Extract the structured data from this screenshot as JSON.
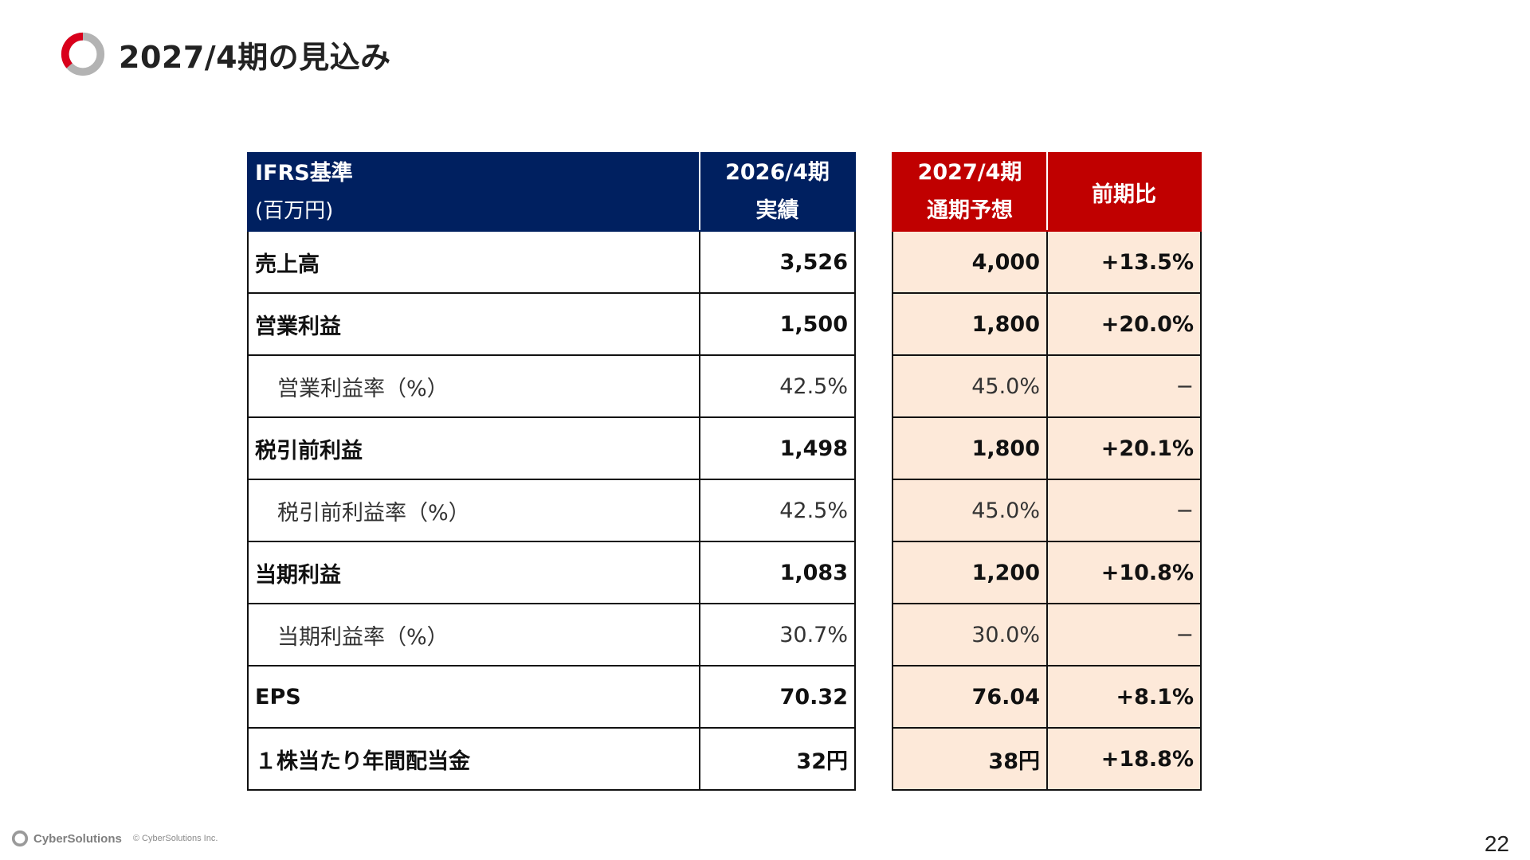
{
  "page": {
    "title": "2027/4期の見込み",
    "page_number": "22"
  },
  "table": {
    "header": {
      "label_line1": "IFRS基準",
      "label_line2": "(百万円)",
      "actual_line1": "2026/4期",
      "actual_line2": "実績",
      "forecast_line1": "2027/4期",
      "forecast_line2": "通期予想",
      "yoy": "前期比"
    },
    "rows": [
      {
        "label": "売上高",
        "actual": "3,526",
        "forecast": "4,000",
        "yoy": "+13.5%"
      },
      {
        "label": "営業利益",
        "actual": "1,500",
        "forecast": "1,800",
        "yoy": "+20.0%"
      },
      {
        "label": "営業利益率（%）",
        "actual": "42.5%",
        "forecast": "45.0%",
        "yoy": "−"
      },
      {
        "label": "税引前利益",
        "actual": "1,498",
        "forecast": "1,800",
        "yoy": "+20.1%"
      },
      {
        "label": "税引前利益率（%）",
        "actual": "42.5%",
        "forecast": "45.0%",
        "yoy": "−"
      },
      {
        "label": "当期利益",
        "actual": "1,083",
        "forecast": "1,200",
        "yoy": "+10.8%"
      },
      {
        "label": "当期利益率（%）",
        "actual": "30.7%",
        "forecast": "30.0%",
        "yoy": "−"
      },
      {
        "label": "EPS",
        "actual": "70.32",
        "forecast": "76.04",
        "yoy": "+8.1%"
      },
      {
        "label": "１株当たり年間配当金",
        "actual": "32円",
        "forecast": "38円",
        "yoy": "+18.8%"
      }
    ]
  },
  "footer": {
    "brand": "CyberSolutions",
    "copyright": "© CyberSolutions Inc."
  },
  "colors": {
    "navy_header": "#002060",
    "red_header": "#c00000",
    "forecast_fill": "#fde9d9",
    "logo_red": "#d9001b",
    "logo_gray": "#b3b3b3"
  }
}
